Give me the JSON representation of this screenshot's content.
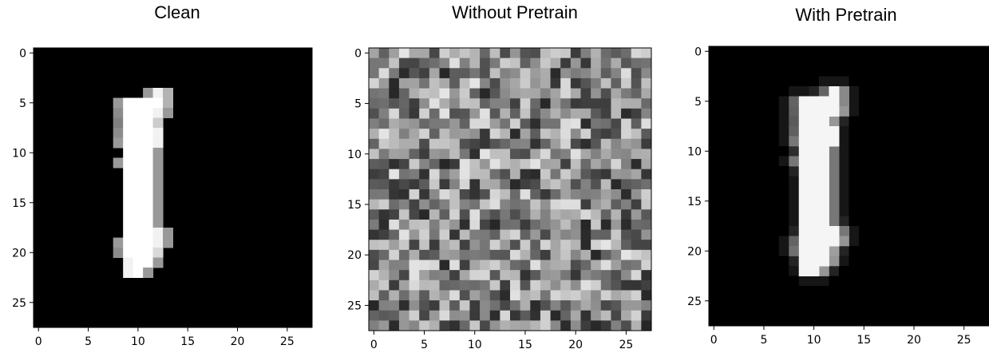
{
  "chart_data": [
    {
      "type": "heatmap",
      "title": "Clean",
      "colormap": "gray",
      "grid": false,
      "xlim": [
        -0.5,
        27.5
      ],
      "ylim": [
        27.5,
        -0.5
      ],
      "xticks": [
        "0",
        "5",
        "10",
        "15",
        "20",
        "25"
      ],
      "yticks": [
        "0",
        "5",
        "10",
        "15",
        "20",
        "25"
      ],
      "image_size": [
        28,
        28
      ],
      "bright_pixels": [
        [
          4,
          11,
          0.6
        ],
        [
          4,
          12,
          0.95
        ],
        [
          4,
          13,
          0.7
        ],
        [
          5,
          8,
          0.6
        ],
        [
          5,
          9,
          1
        ],
        [
          5,
          10,
          1
        ],
        [
          5,
          11,
          1
        ],
        [
          5,
          12,
          1
        ],
        [
          5,
          13,
          0.7
        ],
        [
          6,
          8,
          0.55
        ],
        [
          6,
          9,
          1
        ],
        [
          6,
          10,
          1
        ],
        [
          6,
          11,
          1
        ],
        [
          6,
          12,
          0.95
        ],
        [
          6,
          13,
          0.6
        ],
        [
          7,
          8,
          0.5
        ],
        [
          7,
          9,
          1
        ],
        [
          7,
          10,
          1
        ],
        [
          7,
          11,
          1
        ],
        [
          7,
          12,
          0.8
        ],
        [
          8,
          8,
          0.55
        ],
        [
          8,
          9,
          1
        ],
        [
          8,
          10,
          1
        ],
        [
          8,
          11,
          1
        ],
        [
          8,
          12,
          0.95
        ],
        [
          9,
          8,
          0.6
        ],
        [
          9,
          9,
          1
        ],
        [
          9,
          10,
          1
        ],
        [
          9,
          11,
          1
        ],
        [
          9,
          12,
          0.95
        ],
        [
          10,
          9,
          1
        ],
        [
          10,
          10,
          1
        ],
        [
          10,
          11,
          1
        ],
        [
          10,
          12,
          0.6
        ],
        [
          11,
          8,
          0.6
        ],
        [
          11,
          9,
          1
        ],
        [
          11,
          10,
          1
        ],
        [
          11,
          11,
          1
        ],
        [
          11,
          12,
          0.6
        ],
        [
          12,
          9,
          1
        ],
        [
          12,
          10,
          1
        ],
        [
          12,
          11,
          1
        ],
        [
          12,
          12,
          0.6
        ],
        [
          13,
          9,
          1
        ],
        [
          13,
          10,
          1
        ],
        [
          13,
          11,
          1
        ],
        [
          13,
          12,
          0.6
        ],
        [
          14,
          9,
          1
        ],
        [
          14,
          10,
          1
        ],
        [
          14,
          11,
          1
        ],
        [
          14,
          12,
          0.6
        ],
        [
          15,
          9,
          1
        ],
        [
          15,
          10,
          1
        ],
        [
          15,
          11,
          1
        ],
        [
          15,
          12,
          0.6
        ],
        [
          16,
          9,
          1
        ],
        [
          16,
          10,
          1
        ],
        [
          16,
          11,
          1
        ],
        [
          16,
          12,
          0.6
        ],
        [
          17,
          9,
          1
        ],
        [
          17,
          10,
          1
        ],
        [
          17,
          11,
          1
        ],
        [
          17,
          12,
          0.6
        ],
        [
          18,
          9,
          1
        ],
        [
          18,
          10,
          1
        ],
        [
          18,
          11,
          1
        ],
        [
          18,
          12,
          0.95
        ],
        [
          18,
          13,
          0.6
        ],
        [
          19,
          8,
          0.6
        ],
        [
          19,
          9,
          1
        ],
        [
          19,
          10,
          1
        ],
        [
          19,
          11,
          1
        ],
        [
          19,
          12,
          0.95
        ],
        [
          19,
          13,
          0.6
        ],
        [
          20,
          8,
          0.55
        ],
        [
          20,
          9,
          1
        ],
        [
          20,
          10,
          1
        ],
        [
          20,
          11,
          1
        ],
        [
          20,
          12,
          0.85
        ],
        [
          21,
          9,
          0.95
        ],
        [
          21,
          10,
          1
        ],
        [
          21,
          11,
          1
        ],
        [
          21,
          12,
          0.6
        ],
        [
          22,
          9,
          0.95
        ],
        [
          22,
          10,
          1
        ],
        [
          22,
          11,
          0.6
        ]
      ]
    },
    {
      "type": "heatmap",
      "title": "Without Pretrain",
      "colormap": "gray",
      "grid": false,
      "xlim": [
        -0.5,
        27.5
      ],
      "ylim": [
        27.5,
        -0.5
      ],
      "xticks": [
        "0",
        "5",
        "10",
        "15",
        "20",
        "25"
      ],
      "yticks": [
        "0",
        "5",
        "10",
        "15",
        "20",
        "25"
      ],
      "image_size": [
        28,
        28
      ],
      "content": "uniform random gray noise"
    },
    {
      "type": "heatmap",
      "title": "With Pretrain",
      "colormap": "gray",
      "grid": false,
      "xlim": [
        -0.5,
        27.5
      ],
      "ylim": [
        27.5,
        -0.5
      ],
      "xticks": [
        "0",
        "5",
        "10",
        "15",
        "20",
        "25"
      ],
      "yticks": [
        "0",
        "5",
        "10",
        "15",
        "20",
        "25"
      ],
      "image_size": [
        28,
        28
      ],
      "content": "smoothed reconstruction of the same digit"
    }
  ]
}
